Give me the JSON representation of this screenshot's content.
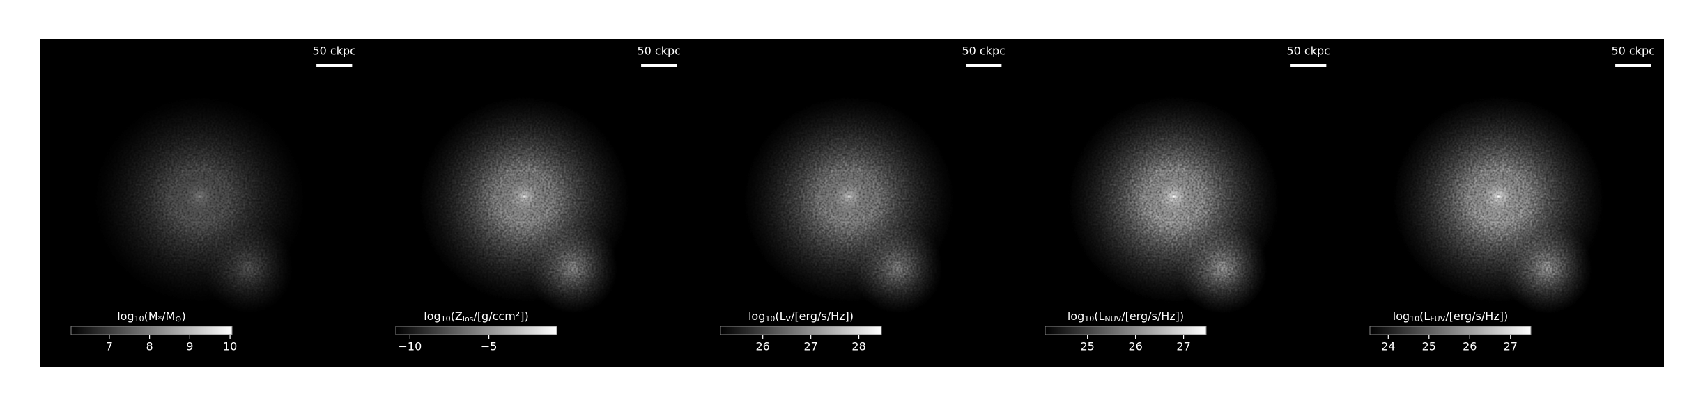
{
  "panels": [
    {
      "scale_bar_label": "50 ckpc",
      "colorbar": {
        "label": [
          "log",
          "10",
          "(M",
          "*",
          "/M",
          "⊙",
          ")"
        ],
        "clim": [
          6.05,
          10.05
        ],
        "ticks": [
          7,
          8,
          9,
          10
        ]
      }
    },
    {
      "scale_bar_label": "50 ckpc",
      "colorbar": {
        "label": [
          "log",
          "10",
          "(Z",
          "los",
          "/[g/ccm²])"
        ],
        "clim": [
          -10.9,
          -0.7
        ],
        "ticks": [
          {
            "value": -10,
            "label": "−10"
          },
          {
            "value": -5,
            "label": "−5"
          }
        ]
      }
    },
    {
      "scale_bar_label": "50 ckpc",
      "colorbar": {
        "label": [
          "log",
          "10",
          "(L",
          "V",
          "/[erg/s/Hz])"
        ],
        "clim": [
          25.12,
          28.47
        ],
        "ticks": [
          26,
          27,
          28
        ]
      }
    },
    {
      "scale_bar_label": "50 ckpc",
      "colorbar": {
        "label": [
          "log",
          "10",
          "(L",
          "NUV",
          "/[erg/s/Hz])"
        ],
        "clim": [
          24.12,
          27.47
        ],
        "ticks": [
          25,
          26,
          27
        ]
      }
    },
    {
      "scale_bar_label": "50 ckpc",
      "colorbar": {
        "label": [
          "log",
          "10",
          "(L",
          "FUV",
          "/[erg/s/Hz])"
        ],
        "clim": [
          23.55,
          27.5
        ],
        "ticks": [
          24,
          25,
          26,
          27
        ]
      }
    }
  ]
}
